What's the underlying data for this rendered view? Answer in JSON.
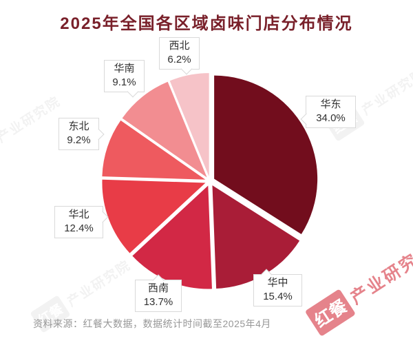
{
  "title": "2025年全国各区域卤味门店分布情况",
  "source_note": "资料来源：红餐大数据，数据统计时间截至2025年4月",
  "watermark": {
    "brand": "红餐",
    "org": "产业研究院",
    "accent_red": "#d5323f",
    "faint_gray": "#8a8a8a"
  },
  "colors": {
    "background": "#ffffff",
    "title_text": "#79202a",
    "label_text": "#2f2f2f",
    "label_border": "#d9d9d9",
    "source_text": "#979797"
  },
  "chart_data": {
    "type": "pie",
    "title": "2025年全国各区域卤味门店分布情况",
    "unit": "%",
    "direction": "clockwise",
    "start_angle_deg": 0,
    "labels_show": "name_and_percent",
    "segments": [
      {
        "key": "huadong",
        "label": "华东",
        "value": 34.0,
        "color": "#720d1d"
      },
      {
        "key": "huazhong",
        "label": "华中",
        "value": 15.4,
        "color": "#a91d37"
      },
      {
        "key": "xinan",
        "label": "西南",
        "value": 13.7,
        "color": "#d22845"
      },
      {
        "key": "huabei",
        "label": "华北",
        "value": 12.4,
        "color": "#e83c47"
      },
      {
        "key": "dongbei",
        "label": "东北",
        "value": 9.2,
        "color": "#ee5a5f"
      },
      {
        "key": "huanan",
        "label": "华南",
        "value": 9.1,
        "color": "#f28d91"
      },
      {
        "key": "xibei",
        "label": "西北",
        "value": 6.2,
        "color": "#f6c3c8"
      }
    ]
  }
}
